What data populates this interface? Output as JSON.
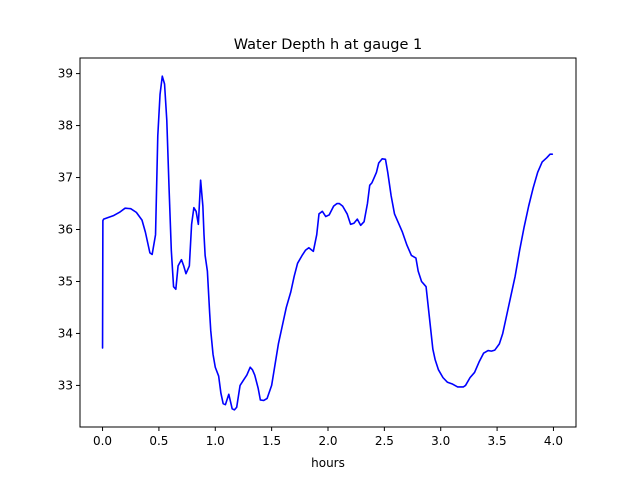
{
  "chart_data": {
    "type": "line",
    "title": "Water Depth h at gauge 1",
    "xlabel": "hours",
    "ylabel": "",
    "xlim": [
      -0.2,
      4.2
    ],
    "ylim": [
      32.2,
      39.3
    ],
    "xticks": [
      0.0,
      0.5,
      1.0,
      1.5,
      2.0,
      2.5,
      3.0,
      3.5,
      4.0
    ],
    "xtick_labels": [
      "0.0",
      "0.5",
      "1.0",
      "1.5",
      "2.0",
      "2.5",
      "3.0",
      "3.5",
      "4.0"
    ],
    "yticks": [
      33,
      34,
      35,
      36,
      37,
      38,
      39
    ],
    "ytick_labels": [
      "33",
      "34",
      "35",
      "36",
      "37",
      "38",
      "39"
    ],
    "grid": false,
    "legend": "none",
    "series": [
      {
        "color": "#0000ff",
        "x": [
          0.0,
          0.003,
          0.01,
          0.05,
          0.1,
          0.15,
          0.2,
          0.25,
          0.3,
          0.35,
          0.38,
          0.42,
          0.44,
          0.47,
          0.49,
          0.51,
          0.53,
          0.55,
          0.57,
          0.59,
          0.61,
          0.63,
          0.65,
          0.67,
          0.7,
          0.72,
          0.74,
          0.77,
          0.79,
          0.81,
          0.83,
          0.85,
          0.87,
          0.89,
          0.9,
          0.91,
          0.93,
          0.95,
          0.96,
          0.98,
          1.0,
          1.03,
          1.05,
          1.07,
          1.09,
          1.12,
          1.15,
          1.17,
          1.19,
          1.22,
          1.25,
          1.28,
          1.31,
          1.33,
          1.35,
          1.38,
          1.4,
          1.43,
          1.46,
          1.5,
          1.53,
          1.56,
          1.59,
          1.63,
          1.67,
          1.7,
          1.73,
          1.77,
          1.8,
          1.83,
          1.87,
          1.9,
          1.92,
          1.95,
          1.98,
          2.01,
          2.05,
          2.08,
          2.1,
          2.13,
          2.17,
          2.2,
          2.23,
          2.26,
          2.29,
          2.32,
          2.35,
          2.37,
          2.39,
          2.41,
          2.43,
          2.45,
          2.48,
          2.51,
          2.53,
          2.56,
          2.59,
          2.62,
          2.66,
          2.7,
          2.74,
          2.78,
          2.8,
          2.83,
          2.85,
          2.87,
          2.89,
          2.91,
          2.93,
          2.95,
          2.98,
          3.02,
          3.06,
          3.1,
          3.15,
          3.2,
          3.22,
          3.26,
          3.3,
          3.34,
          3.38,
          3.42,
          3.45,
          3.48,
          3.52,
          3.55,
          3.58,
          3.62,
          3.66,
          3.7,
          3.74,
          3.78,
          3.82,
          3.86,
          3.9,
          3.94,
          3.97,
          3.99
        ],
        "y": [
          33.72,
          36.17,
          36.2,
          36.23,
          36.27,
          36.33,
          36.41,
          36.4,
          36.33,
          36.18,
          35.95,
          35.55,
          35.52,
          35.9,
          37.8,
          38.6,
          38.95,
          38.8,
          38.1,
          36.8,
          35.6,
          34.9,
          34.85,
          35.3,
          35.42,
          35.3,
          35.15,
          35.3,
          36.1,
          36.42,
          36.35,
          36.1,
          36.95,
          36.45,
          35.9,
          35.5,
          35.2,
          34.4,
          34.05,
          33.6,
          33.35,
          33.18,
          32.85,
          32.65,
          32.63,
          32.83,
          32.55,
          32.53,
          32.58,
          33.0,
          33.1,
          33.2,
          33.35,
          33.3,
          33.2,
          32.95,
          32.72,
          32.71,
          32.75,
          33.0,
          33.4,
          33.8,
          34.1,
          34.5,
          34.8,
          35.1,
          35.35,
          35.5,
          35.6,
          35.65,
          35.58,
          35.9,
          36.3,
          36.35,
          36.25,
          36.28,
          36.45,
          36.5,
          36.5,
          36.45,
          36.3,
          36.1,
          36.12,
          36.2,
          36.08,
          36.15,
          36.5,
          36.85,
          36.9,
          37.0,
          37.1,
          37.28,
          37.36,
          37.35,
          37.1,
          36.65,
          36.3,
          36.15,
          35.95,
          35.7,
          35.5,
          35.45,
          35.2,
          35.0,
          34.95,
          34.9,
          34.5,
          34.1,
          33.7,
          33.5,
          33.3,
          33.15,
          33.06,
          33.03,
          32.97,
          32.97,
          33.0,
          33.15,
          33.25,
          33.45,
          33.62,
          33.67,
          33.66,
          33.68,
          33.8,
          34.0,
          34.3,
          34.7,
          35.1,
          35.6,
          36.05,
          36.45,
          36.8,
          37.1,
          37.3,
          37.38,
          37.45,
          37.45
        ]
      }
    ]
  }
}
